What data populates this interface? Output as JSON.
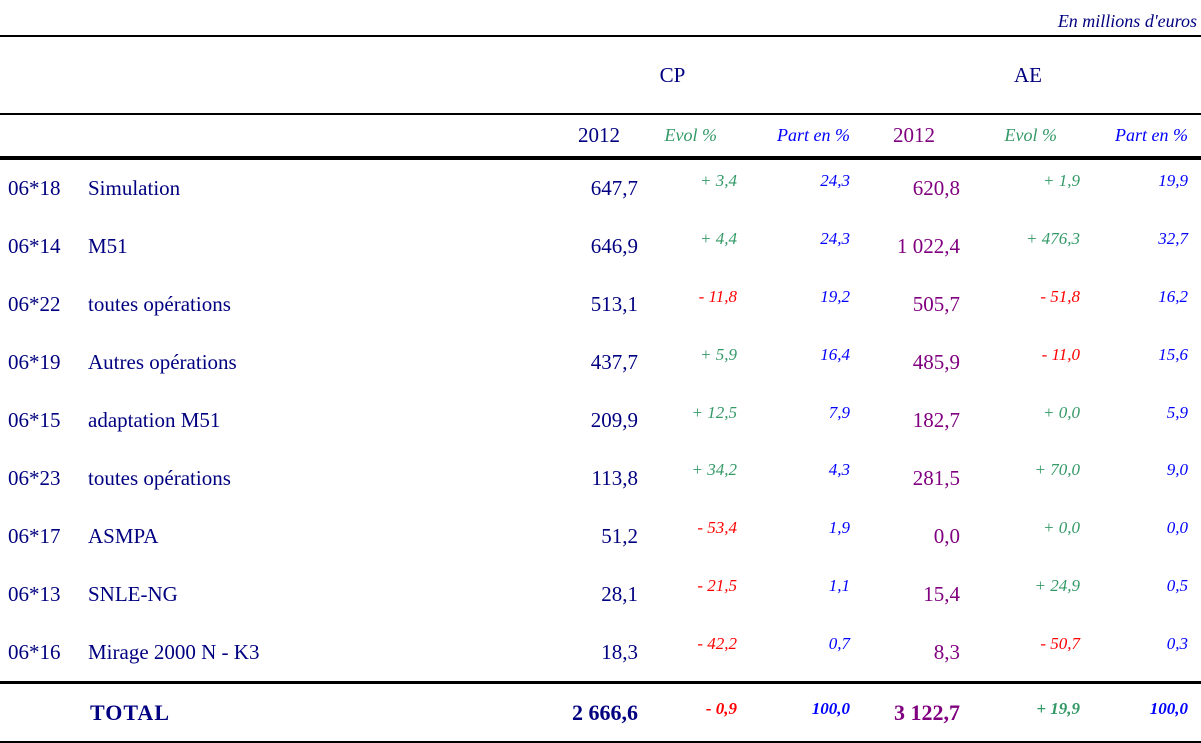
{
  "unit_note": "En millions d'euros",
  "groups": {
    "cp": "CP",
    "ae": "AE"
  },
  "columns": {
    "year": "2012",
    "evol": "Evol %",
    "part": "Part en %"
  },
  "colors": {
    "label_navy": "#000080",
    "ae_purple": "#800080",
    "evol_positive_green": "#339966",
    "evol_negative_red": "#ff0000",
    "part_blue": "#0000ff",
    "rule_black": "#000000"
  },
  "table": {
    "rows": [
      {
        "code": "06*18",
        "label": "Simulation",
        "cp_2012": "647,7",
        "cp_evol": "+ 3,4",
        "cp_part": "24,3",
        "ae_2012": "620,8",
        "ae_evol": "+ 1,9",
        "ae_part": "19,9"
      },
      {
        "code": "06*14",
        "label": "M51",
        "cp_2012": "646,9",
        "cp_evol": "+ 4,4",
        "cp_part": "24,3",
        "ae_2012": "1 022,4",
        "ae_evol": "+ 476,3",
        "ae_part": "32,7"
      },
      {
        "code": "06*22",
        "label": "toutes opérations",
        "cp_2012": "513,1",
        "cp_evol": "- 11,8",
        "cp_part": "19,2",
        "ae_2012": "505,7",
        "ae_evol": "- 51,8",
        "ae_part": "16,2"
      },
      {
        "code": "06*19",
        "label": "Autres opérations",
        "cp_2012": "437,7",
        "cp_evol": "+ 5,9",
        "cp_part": "16,4",
        "ae_2012": "485,9",
        "ae_evol": "- 11,0",
        "ae_part": "15,6"
      },
      {
        "code": "06*15",
        "label": "adaptation M51",
        "cp_2012": "209,9",
        "cp_evol": "+ 12,5",
        "cp_part": "7,9",
        "ae_2012": "182,7",
        "ae_evol": "+ 0,0",
        "ae_part": "5,9"
      },
      {
        "code": "06*23",
        "label": "toutes opérations",
        "cp_2012": "113,8",
        "cp_evol": "+ 34,2",
        "cp_part": "4,3",
        "ae_2012": "281,5",
        "ae_evol": "+ 70,0",
        "ae_part": "9,0"
      },
      {
        "code": "06*17",
        "label": "ASMPA",
        "cp_2012": "51,2",
        "cp_evol": "- 53,4",
        "cp_part": "1,9",
        "ae_2012": "0,0",
        "ae_evol": "+ 0,0",
        "ae_part": "0,0"
      },
      {
        "code": "06*13",
        "label": "SNLE-NG",
        "cp_2012": "28,1",
        "cp_evol": "- 21,5",
        "cp_part": "1,1",
        "ae_2012": "15,4",
        "ae_evol": "+ 24,9",
        "ae_part": "0,5"
      },
      {
        "code": "06*16",
        "label": "Mirage 2000 N - K3",
        "cp_2012": "18,3",
        "cp_evol": "- 42,2",
        "cp_part": "0,7",
        "ae_2012": "8,3",
        "ae_evol": "- 50,7",
        "ae_part": "0,3"
      }
    ],
    "total": {
      "label": "TOTAL",
      "cp_2012": "2 666,6",
      "cp_evol": "- 0,9",
      "cp_part": "100,0",
      "ae_2012": "3 122,7",
      "ae_evol": "+ 19,9",
      "ae_part": "100,0"
    }
  }
}
